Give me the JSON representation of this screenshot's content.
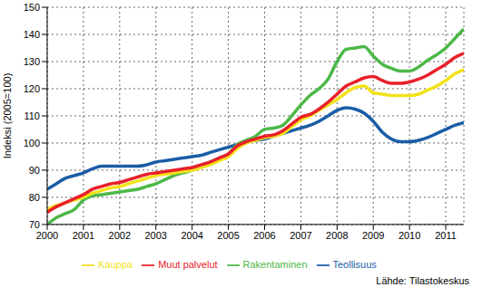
{
  "chart_data": {
    "type": "line",
    "y_label": "Indeksi (2005=100)",
    "source": "Lähde: Tilastokeskus",
    "x": [
      2000,
      2000.25,
      2000.5,
      2000.75,
      2001,
      2001.25,
      2001.5,
      2001.75,
      2002,
      2002.25,
      2002.5,
      2002.75,
      2003,
      2003.25,
      2003.5,
      2003.75,
      2004,
      2004.25,
      2004.5,
      2004.75,
      2005,
      2005.25,
      2005.5,
      2005.75,
      2006,
      2006.25,
      2006.5,
      2006.75,
      2007,
      2007.25,
      2007.5,
      2007.75,
      2008,
      2008.25,
      2008.5,
      2008.75,
      2009,
      2009.25,
      2009.5,
      2009.75,
      2010,
      2010.25,
      2010.5,
      2010.75,
      2011,
      2011.25,
      2011.5
    ],
    "xlim": [
      2000,
      2011.5
    ],
    "xticks": [
      2000,
      2001,
      2002,
      2003,
      2004,
      2005,
      2006,
      2007,
      2008,
      2009,
      2010,
      2011
    ],
    "ylim": [
      70,
      150
    ],
    "yticks": [
      70,
      80,
      90,
      100,
      110,
      120,
      130,
      140,
      150
    ],
    "grid": true,
    "legend": "bottom",
    "series": [
      {
        "name": "Teollisuus",
        "color": "#1a5da6",
        "values": [
          83,
          85,
          87,
          88,
          89,
          90.5,
          91.5,
          91.5,
          91.5,
          91.5,
          91.5,
          92,
          93,
          93.5,
          94,
          94.5,
          95,
          95.5,
          96.5,
          97.5,
          98.5,
          99.5,
          100.5,
          101,
          101.5,
          102.5,
          103.5,
          104.5,
          105.5,
          106.5,
          108,
          110,
          112,
          113,
          112.5,
          111,
          108,
          104,
          101.5,
          100.5,
          100.5,
          101,
          102,
          103.5,
          105,
          106.5,
          107.5
        ]
      },
      {
        "name": "Rakentaminen",
        "color": "#4db848",
        "values": [
          70,
          72.5,
          74,
          75.5,
          79,
          80.5,
          81,
          81.5,
          82,
          82.5,
          83,
          84,
          85,
          86.5,
          88,
          89,
          90,
          91.5,
          93,
          94.5,
          96,
          99.5,
          101,
          102.5,
          105,
          105.5,
          106.5,
          110,
          114,
          117.5,
          120,
          123.5,
          130,
          134.5,
          135,
          135.5,
          132,
          129,
          127.5,
          126.5,
          126.5,
          128,
          130.5,
          132.5,
          135,
          138.5,
          142
        ]
      },
      {
        "name": "Kauppa",
        "color": "#f2e21a",
        "values": [
          75.5,
          77,
          78,
          79,
          80,
          81.5,
          82.5,
          83.5,
          84,
          85,
          86,
          87,
          88,
          88.5,
          89,
          89.5,
          90,
          91,
          92,
          93.5,
          95,
          98,
          100,
          101,
          102,
          102.5,
          103.5,
          106,
          108.5,
          110,
          112,
          114,
          116,
          118.5,
          120.5,
          121,
          118.5,
          118,
          117.5,
          117.5,
          117.5,
          118,
          119.5,
          121,
          123,
          125.5,
          127
        ]
      },
      {
        "name": "Muut palvelut",
        "color": "#e8202a",
        "values": [
          74.5,
          76.5,
          78,
          79.5,
          81,
          83,
          84,
          85,
          85.5,
          86.5,
          87.5,
          88.5,
          89,
          89.5,
          90,
          90.5,
          91,
          92,
          93,
          94.5,
          96,
          99,
          100.5,
          101.5,
          102.5,
          103,
          104.5,
          107,
          109.5,
          110.5,
          112.5,
          115,
          118,
          121,
          122.5,
          124,
          124.5,
          123,
          122,
          122,
          122.5,
          123.5,
          125,
          127,
          129,
          131.5,
          133
        ]
      }
    ]
  }
}
